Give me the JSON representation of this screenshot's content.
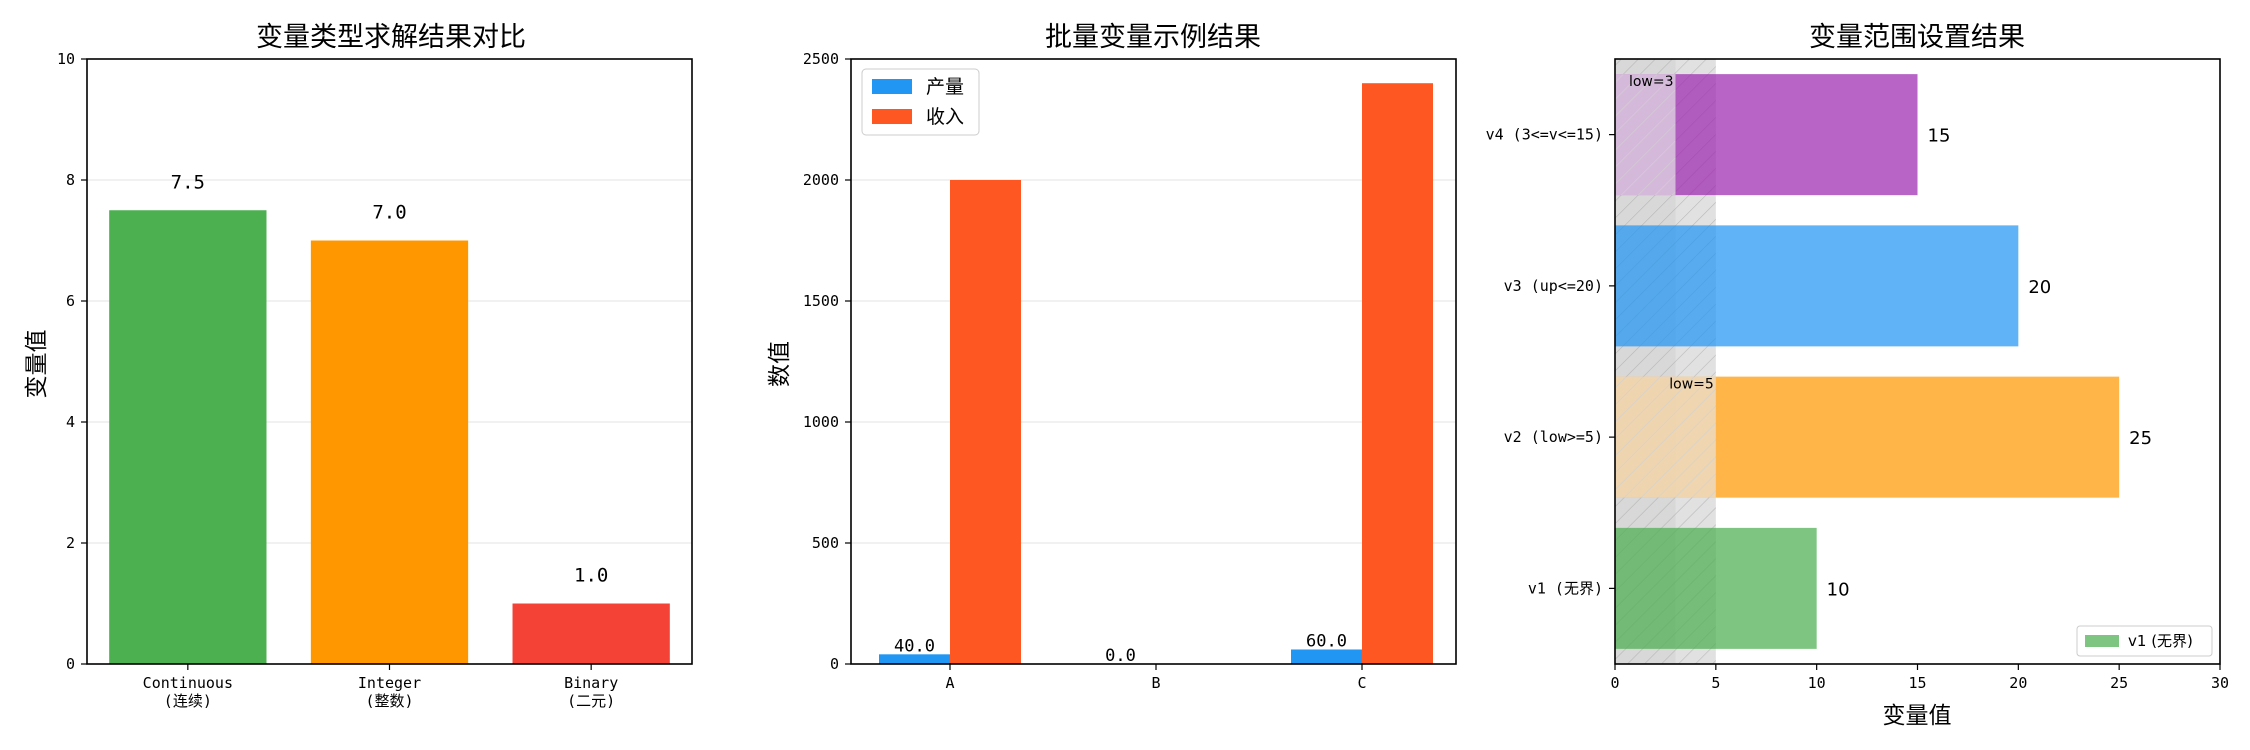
{
  "chart_data": [
    {
      "type": "bar",
      "title": "变量类型求解结果对比",
      "xlabel": "",
      "ylabel": "变量值",
      "categories": [
        "Continuous\n(连续)",
        "Integer\n(整数)",
        "Binary\n(二元)"
      ],
      "values": [
        7.5,
        7.0,
        1.0
      ],
      "value_labels": [
        "7.5",
        "7.0",
        "1.0"
      ],
      "colors": [
        "#4CAF50",
        "#FF9800",
        "#F44336"
      ],
      "ylim": [
        0,
        10
      ],
      "yticks": [
        0,
        2,
        4,
        6,
        8,
        10
      ],
      "grid": "horizontal"
    },
    {
      "type": "bar",
      "title": "批量变量示例结果",
      "xlabel": "",
      "ylabel": "数值",
      "categories": [
        "A",
        "B",
        "C"
      ],
      "series": [
        {
          "name": "产量",
          "values": [
            40.0,
            0.0,
            60.0
          ],
          "value_labels": [
            "40.0",
            "0.0",
            "60.0"
          ],
          "color": "#2196F3"
        },
        {
          "name": "收入",
          "values": [
            2000,
            0,
            2400
          ],
          "color": "#FF5722"
        }
      ],
      "ylim": [
        0,
        2500
      ],
      "yticks": [
        0,
        500,
        1000,
        1500,
        2000,
        2500
      ],
      "legend": "top-left",
      "grid": "horizontal"
    },
    {
      "type": "bar",
      "orientation": "horizontal",
      "title": "变量范围设置结果",
      "xlabel": "变量值",
      "ylabel": "",
      "categories": [
        "v1 (无界)",
        "v2 (low>=5)",
        "v3 (up<=20)",
        "v4 (3<=v<=15)"
      ],
      "values": [
        10,
        25,
        20,
        15
      ],
      "value_labels": [
        "10",
        "25",
        "20",
        "15"
      ],
      "colors": [
        "#4CAF50",
        "#FF9800",
        "#2196F3",
        "#9C27B0"
      ],
      "xlim": [
        0,
        30
      ],
      "xticks": [
        0,
        5,
        10,
        15,
        20,
        25,
        30
      ],
      "lower_bounds": [
        {
          "category": "v2 (low>=5)",
          "value": 5,
          "label": "low=5"
        },
        {
          "category": "v4 (3<=v<=15)",
          "value": 3,
          "label": "low=3"
        }
      ],
      "legend": "bottom-right",
      "legend_entries": [
        "v1 (无界)"
      ]
    }
  ]
}
